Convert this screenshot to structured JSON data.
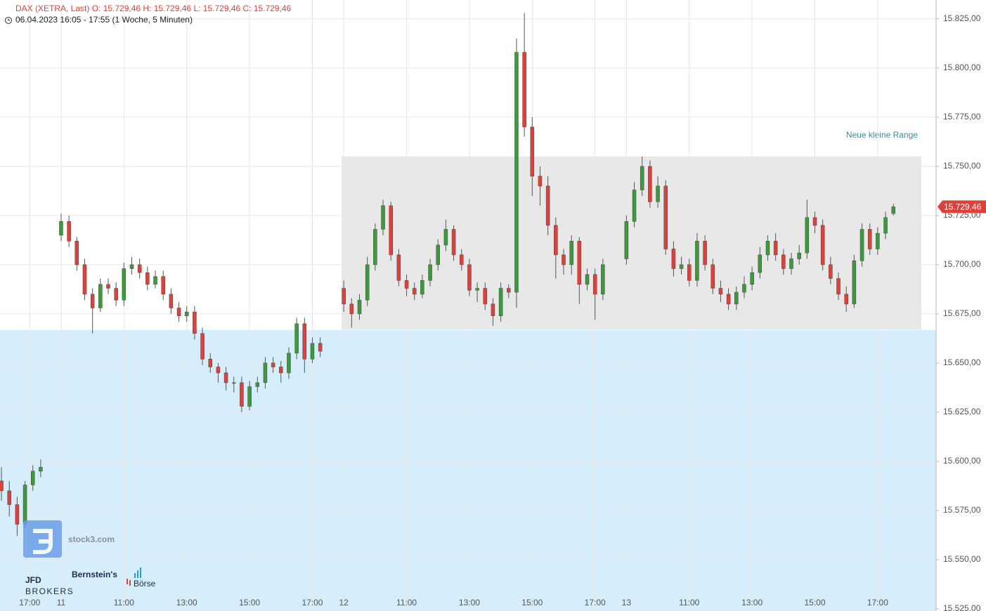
{
  "chart_data": {
    "type": "candlestick",
    "title": "DAX (XETRA, Last)  O: 15.729,46  H: 15.729,46  L: 15.729,46  C: 15.729,46",
    "subtitle": "06.04.2023 16:05 - 17:55  (1 Woche, 5 Minuten)",
    "up_color": "#3c9a3c",
    "down_color": "#e0403a",
    "grid": true,
    "xlim": [
      0.054,
      29.86
    ],
    "ylim": [
      15523.9,
      15834.6
    ],
    "xticks": [
      {
        "value": 1,
        "label": "17:00"
      },
      {
        "value": 2,
        "label": "11"
      },
      {
        "value": 4,
        "label": "11:00"
      },
      {
        "value": 6,
        "label": "13:00"
      },
      {
        "value": 8,
        "label": "15:00"
      },
      {
        "value": 10,
        "label": "17:00"
      },
      {
        "value": 11,
        "label": "12"
      },
      {
        "value": 13,
        "label": "11:00"
      },
      {
        "value": 15,
        "label": "13:00"
      },
      {
        "value": 17,
        "label": "15:00"
      },
      {
        "value": 19,
        "label": "17:00"
      },
      {
        "value": 20,
        "label": "13"
      },
      {
        "value": 22,
        "label": "11:00"
      },
      {
        "value": 24,
        "label": "13:00"
      },
      {
        "value": 26,
        "label": "15:00"
      },
      {
        "value": 28,
        "label": "17:00"
      }
    ],
    "yticks": [
      {
        "value": 15525,
        "label": "15.525,00"
      },
      {
        "value": 15550,
        "label": "15.550,00"
      },
      {
        "value": 15575,
        "label": "15.575,00"
      },
      {
        "value": 15600,
        "label": "15.600,00"
      },
      {
        "value": 15625,
        "label": "15.625,00"
      },
      {
        "value": 15650,
        "label": "15.650,00"
      },
      {
        "value": 15675,
        "label": "15.675,00"
      },
      {
        "value": 15700,
        "label": "15.700,00"
      },
      {
        "value": 15725,
        "label": "15.725,00"
      },
      {
        "value": 15750,
        "label": "15.750,00"
      },
      {
        "value": 15775,
        "label": "15.775,00"
      },
      {
        "value": 15800,
        "label": "15.800,00"
      },
      {
        "value": 15825,
        "label": "15.825,00"
      }
    ],
    "x": [
      0.1,
      0.35,
      0.6,
      0.85,
      1.1,
      1.35,
      2,
      2.25,
      2.5,
      2.75,
      3,
      3.25,
      3.5,
      3.75,
      4,
      4.25,
      4.5,
      4.75,
      5,
      5.25,
      5.5,
      5.75,
      6,
      6.25,
      6.5,
      6.75,
      7,
      7.25,
      7.5,
      7.75,
      8,
      8.25,
      8.5,
      8.75,
      9,
      9.25,
      9.5,
      9.75,
      10,
      10.25,
      11,
      11.25,
      11.5,
      11.75,
      12,
      12.25,
      12.5,
      12.75,
      13,
      13.25,
      13.5,
      13.75,
      14,
      14.25,
      14.5,
      14.75,
      15,
      15.25,
      15.5,
      15.75,
      16,
      16.25,
      16.5,
      16.75,
      17,
      17.25,
      17.5,
      17.75,
      18,
      18.25,
      18.5,
      18.75,
      19,
      19.25,
      20,
      20.25,
      20.5,
      20.75,
      21,
      21.25,
      21.5,
      21.75,
      22,
      22.25,
      22.5,
      22.75,
      23,
      23.25,
      23.5,
      23.75,
      24,
      24.25,
      24.5,
      24.75,
      25,
      25.25,
      25.5,
      25.75,
      26,
      26.25,
      26.5,
      26.75,
      27,
      27.25,
      27.5,
      27.75,
      28,
      28.25,
      28.5
    ],
    "open": [
      15590,
      15585,
      15578,
      15568,
      15588,
      15595,
      15715,
      15722,
      15712,
      15700,
      15685,
      15678,
      15690,
      15688,
      15682,
      15698,
      15700,
      15696,
      15690,
      15694,
      15685,
      15678,
      15674,
      15676,
      15665,
      15652,
      15648,
      15645,
      15640,
      15640,
      15628,
      15638,
      15640,
      15650,
      15648,
      15645,
      15655,
      15670,
      15652,
      15660,
      15688,
      15680,
      15675,
      15682,
      15700,
      15718,
      15730,
      15705,
      15692,
      15688,
      15685,
      15692,
      15700,
      15710,
      15718,
      15705,
      15700,
      15687,
      15688,
      15680,
      15674,
      15688,
      15686,
      15808,
      15770,
      15745,
      15740,
      15720,
      15705,
      15700,
      15712,
      15690,
      15695,
      15685,
      15703,
      15722,
      15738,
      15750,
      15732,
      15740,
      15708,
      15698,
      15700,
      15692,
      15712,
      15700,
      15688,
      15685,
      15680,
      15686,
      15690,
      15696,
      15705,
      15712,
      15705,
      15698,
      15703,
      15706,
      15724,
      15720,
      15700,
      15693,
      15685,
      15680,
      15702,
      15718,
      15708,
      15716,
      15726
    ],
    "high": [
      15597,
      15590,
      15582,
      15590,
      15598,
      15601,
      15726,
      15725,
      15714,
      15703,
      15688,
      15693,
      15693,
      15691,
      15701,
      15704,
      15703,
      15699,
      15697,
      15697,
      15688,
      15681,
      15679,
      15679,
      15668,
      15655,
      15650,
      15648,
      15643,
      15643,
      15641,
      15643,
      15653,
      15653,
      15651,
      15658,
      15673,
      15673,
      15663,
      15663,
      15692,
      15683,
      15685,
      15704,
      15721,
      15733,
      15732,
      15708,
      15695,
      15691,
      15695,
      15703,
      15713,
      15723,
      15720,
      15708,
      15703,
      15691,
      15691,
      15683,
      15691,
      15690,
      15815,
      15828,
      15775,
      15750,
      15745,
      15724,
      15708,
      15715,
      15714,
      15698,
      15698,
      15703,
      15725,
      15742,
      15755,
      15753,
      15745,
      15743,
      15712,
      15704,
      15703,
      15716,
      15715,
      15703,
      15692,
      15688,
      15689,
      15694,
      15699,
      15709,
      15715,
      15716,
      15708,
      15706,
      15710,
      15733,
      15727,
      15723,
      15704,
      15696,
      15689,
      15705,
      15721,
      15721,
      15719,
      15727,
      15731
    ],
    "low": [
      15580,
      15572,
      15562,
      15566,
      15585,
      15592,
      15712,
      15709,
      15697,
      15682,
      15665,
      15676,
      15685,
      15679,
      15679,
      15695,
      15693,
      15687,
      15688,
      15682,
      15675,
      15671,
      15671,
      15662,
      15649,
      15645,
      15640,
      15636,
      15635,
      15625,
      15626,
      15635,
      15637,
      15645,
      15640,
      15642,
      15652,
      15645,
      15650,
      15653,
      15676,
      15668,
      15672,
      15679,
      15697,
      15715,
      15702,
      15689,
      15684,
      15682,
      15683,
      15689,
      15697,
      15707,
      15702,
      15697,
      15684,
      15681,
      15677,
      15669,
      15671,
      15683,
      15678,
      15765,
      15735,
      15730,
      15715,
      15693,
      15695,
      15695,
      15680,
      15687,
      15672,
      15682,
      15700,
      15719,
      15735,
      15729,
      15729,
      15705,
      15694,
      15695,
      15689,
      15689,
      15697,
      15685,
      15681,
      15677,
      15677,
      15683,
      15687,
      15693,
      15702,
      15702,
      15695,
      15695,
      15700,
      15703,
      15716,
      15697,
      15690,
      15682,
      15676,
      15678,
      15699,
      15705,
      15705,
      15713,
      15725
    ],
    "close": [
      15585,
      15578,
      15568,
      15588,
      15595,
      15597,
      15722,
      15712,
      15700,
      15685,
      15678,
      15690,
      15688,
      15682,
      15698,
      15700,
      15696,
      15690,
      15694,
      15685,
      15678,
      15674,
      15676,
      15665,
      15652,
      15648,
      15645,
      15640,
      15640,
      15628,
      15638,
      15640,
      15650,
      15648,
      15645,
      15655,
      15670,
      15652,
      15660,
      15656,
      15680,
      15675,
      15682,
      15700,
      15718,
      15730,
      15705,
      15692,
      15688,
      15685,
      15692,
      15700,
      15710,
      15718,
      15705,
      15700,
      15687,
      15688,
      15680,
      15674,
      15688,
      15686,
      15808,
      15770,
      15745,
      15740,
      15720,
      15705,
      15700,
      15712,
      15690,
      15695,
      15685,
      15700,
      15722,
      15738,
      15750,
      15732,
      15740,
      15708,
      15698,
      15700,
      15692,
      15712,
      15700,
      15688,
      15685,
      15680,
      15686,
      15690,
      15696,
      15705,
      15712,
      15705,
      15698,
      15703,
      15706,
      15724,
      15720,
      15700,
      15693,
      15685,
      15680,
      15702,
      15718,
      15708,
      15716,
      15724,
      15729.46
    ],
    "last_price": {
      "value": 15729.46,
      "label": "15.729,46",
      "color": "#e0403a"
    },
    "support_zone": {
      "y": [
        15523.9,
        15666.8
      ],
      "color": "#d6eefc"
    },
    "range_box": {
      "label": "Neue kleine Range",
      "x": [
        10.93,
        29.39
      ],
      "y": [
        15667,
        15755
      ],
      "color": "#e4e4e4",
      "label_color": "#3e8a97"
    },
    "logos": {
      "stock3": "stock3.com",
      "jfd": "JFD",
      "jfd_sub": "BROKERS",
      "bernstein": "Bernstein's",
      "boerse": "Börse"
    }
  }
}
